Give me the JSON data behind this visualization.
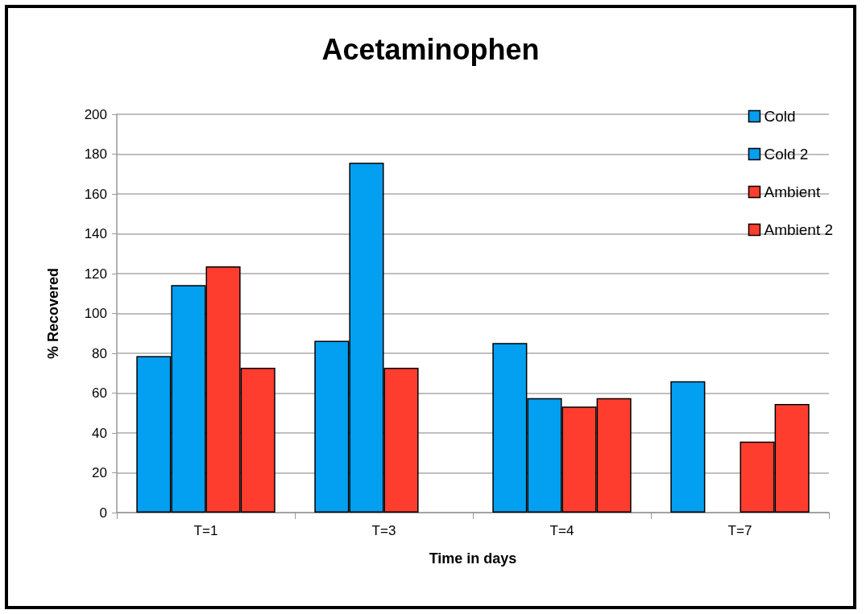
{
  "chart_data": {
    "type": "bar",
    "title": "Acetaminophen",
    "xlabel": "Time in days",
    "ylabel": "% Recovered",
    "categories": [
      "T=1",
      "T=3",
      "T=4",
      "T=7"
    ],
    "series": [
      {
        "name": "Cold",
        "color": "#039ff1",
        "values": [
          78.6,
          86.3,
          85.2,
          66
        ]
      },
      {
        "name": "Cold 2",
        "color": "#039ff1",
        "values": [
          114.2,
          175.7,
          57.5,
          null
        ]
      },
      {
        "name": "Ambient",
        "color": "#fe3d2f",
        "values": [
          123.6,
          72.7,
          53.2,
          35.7
        ]
      },
      {
        "name": "Ambient 2",
        "color": "#fe3d2f",
        "values": [
          72.7,
          null,
          57.5,
          54.5
        ]
      }
    ],
    "ylim": [
      0,
      200
    ],
    "yticks": [
      0,
      20,
      40,
      60,
      80,
      100,
      120,
      140,
      160,
      180,
      200
    ],
    "grid": "y",
    "legend": "top right"
  }
}
